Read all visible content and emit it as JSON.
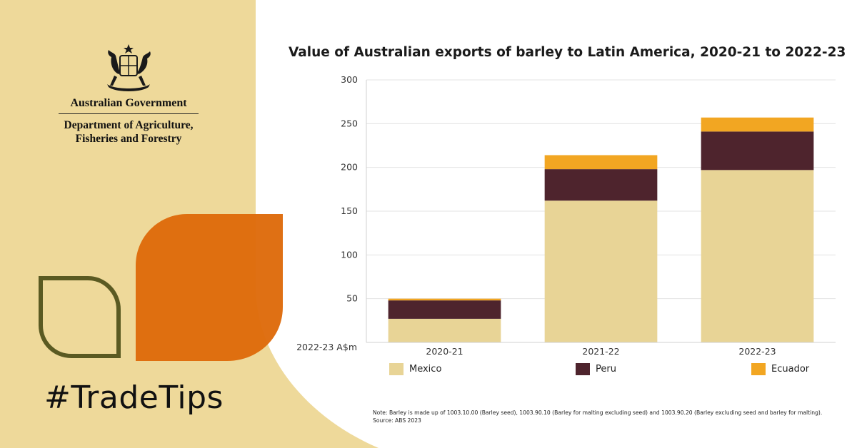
{
  "brand": {
    "gov_name": "Australian Government",
    "dept_line1": "Department of Agriculture,",
    "dept_line2": "Fisheries and Forestry",
    "hashtag": "#TradeTips"
  },
  "colors": {
    "beige_panel": "#eed99a",
    "orange_leaf": "#de6a0a",
    "olive_outline": "#5a5a22",
    "mexico": "#e8d496",
    "peru": "#4e242d",
    "ecuador": "#f2a622"
  },
  "chart_data": {
    "type": "bar",
    "stacked": true,
    "title": "Value of Australian exports of barley to Latin America, 2020-21 to 2022-23",
    "ylabel": "2022-23 A$m",
    "xlabel": "",
    "ylim": [
      0,
      300
    ],
    "yticks": [
      50,
      100,
      150,
      200,
      250,
      300
    ],
    "grid": true,
    "legend_position": "bottom",
    "categories": [
      "2020-21",
      "2021-22",
      "2022-23"
    ],
    "series": [
      {
        "name": "Mexico",
        "values": [
          27,
          162,
          197
        ],
        "color": "#e8d496"
      },
      {
        "name": "Peru",
        "values": [
          21,
          36,
          44
        ],
        "color": "#4e242d"
      },
      {
        "name": "Ecuador",
        "values": [
          2,
          16,
          16
        ],
        "color": "#f2a622"
      }
    ]
  },
  "note": {
    "line1": "Note: Barley is made up of 1003.10.00 (Barley seed), 1003.90.10 (Barley for malting excluding seed) and 1003.90.20 (Barley excluding seed and barley for malting).",
    "line2": "Source: ABS 2023"
  }
}
